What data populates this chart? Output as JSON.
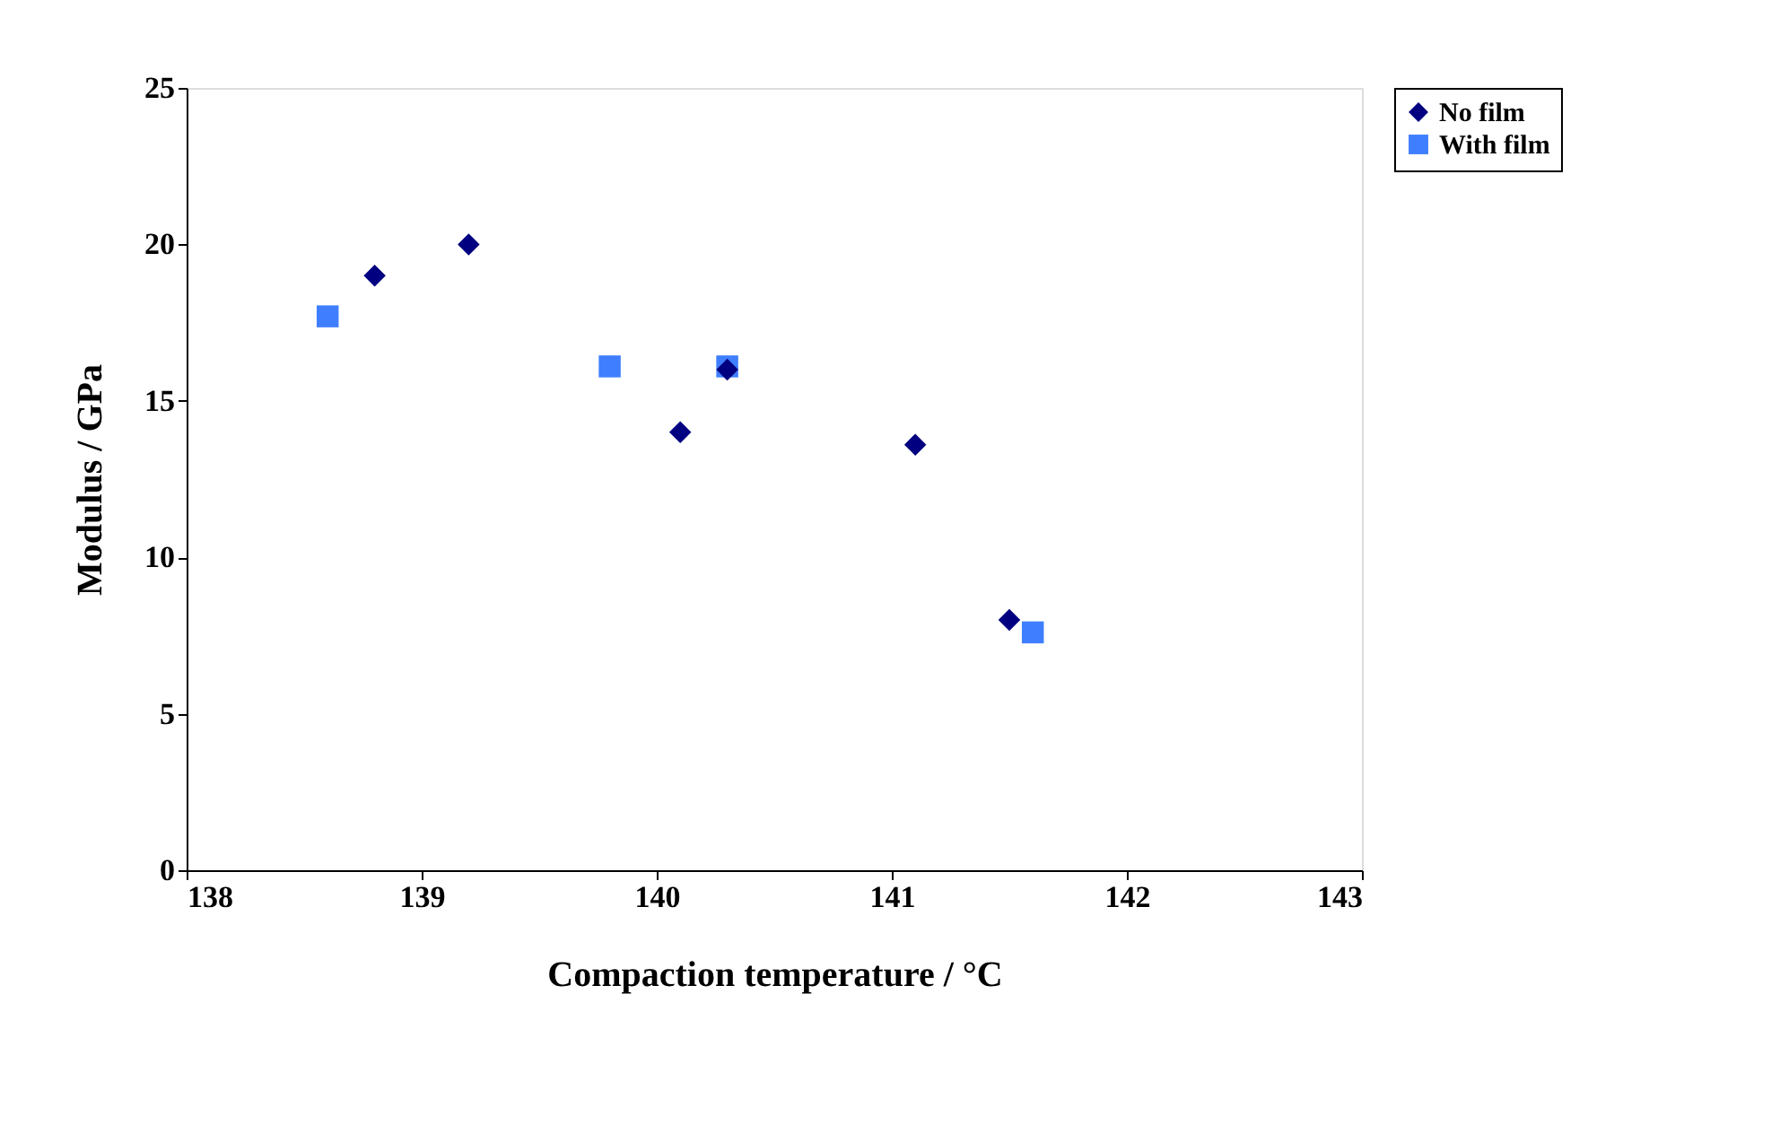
{
  "chart_data": {
    "type": "scatter",
    "xlabel": "Compaction temperature / °C",
    "ylabel": "Modulus / GPa",
    "xlim": [
      138,
      143
    ],
    "xticks": [
      138,
      139,
      140,
      141,
      142,
      143
    ],
    "ylim": [
      0,
      25
    ],
    "yticks": [
      0,
      5,
      10,
      15,
      20,
      25
    ],
    "grid": false,
    "legend": "right",
    "series": [
      {
        "name": "No film",
        "color": "#000080",
        "marker": "diamond",
        "x": [
          138.8,
          139.2,
          140.1,
          140.3,
          141.1,
          141.5
        ],
        "values": [
          19.0,
          20.0,
          14.0,
          16.0,
          13.6,
          8.0
        ]
      },
      {
        "name": "With film",
        "color": "#3f7fff",
        "marker": "square",
        "x": [
          138.6,
          139.8,
          140.3,
          141.6
        ],
        "values": [
          17.7,
          16.1,
          16.1,
          7.6
        ]
      }
    ]
  }
}
